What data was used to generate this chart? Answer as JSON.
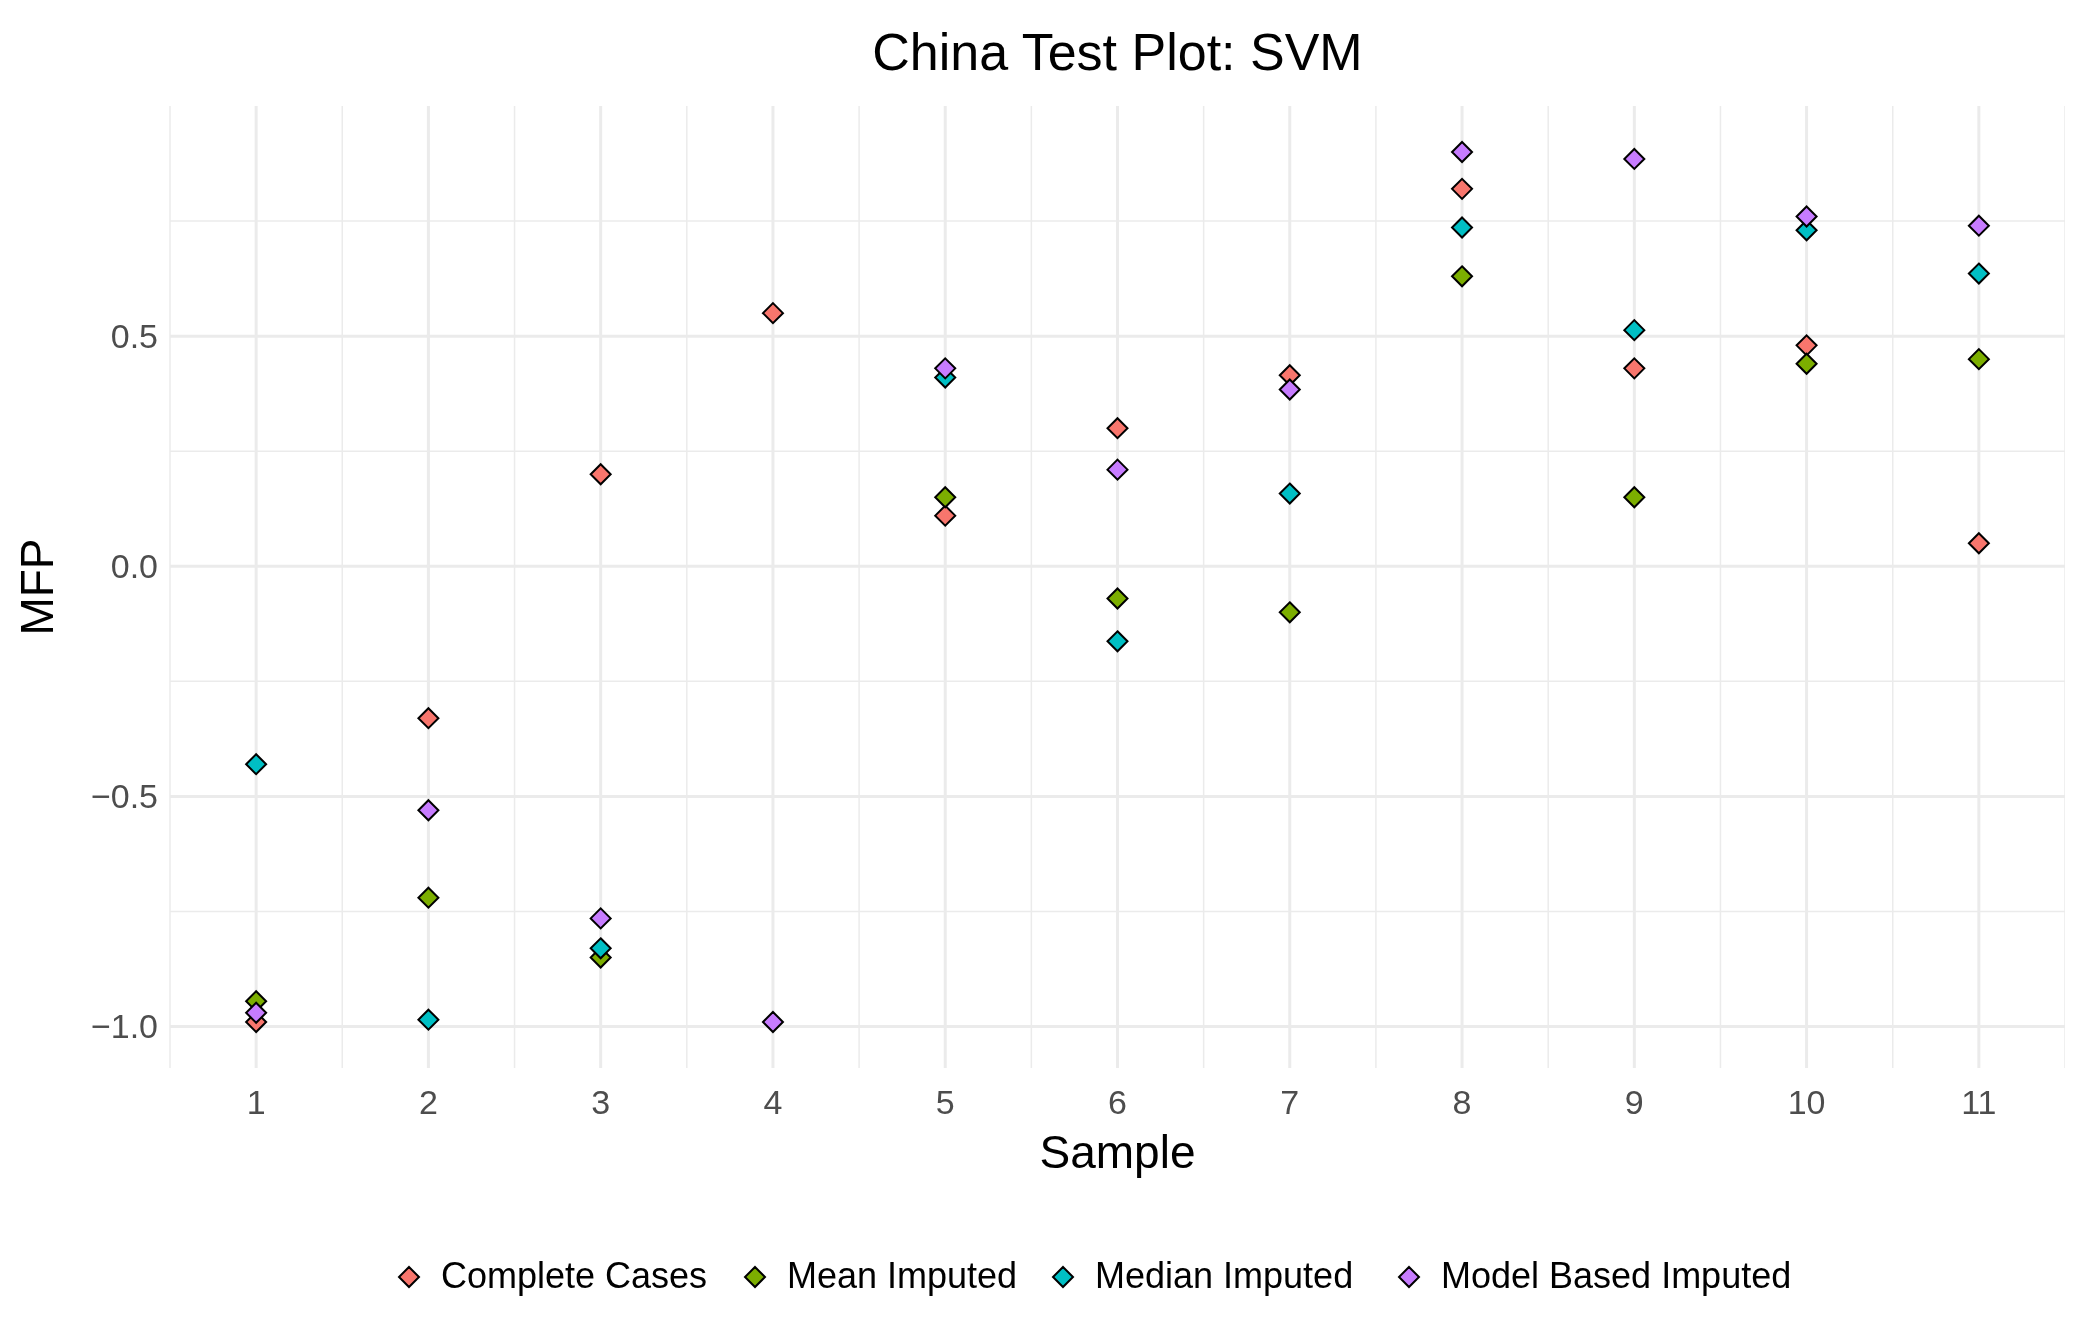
{
  "chart_data": {
    "type": "scatter",
    "title": "China Test Plot: SVM",
    "xlabel": "Sample",
    "ylabel": "MFP",
    "categories": [
      "1",
      "2",
      "3",
      "4",
      "5",
      "6",
      "7",
      "8",
      "9",
      "10",
      "11"
    ],
    "series": [
      {
        "name": "Complete Cases",
        "color": "#f8766d",
        "values": [
          -0.99,
          -0.33,
          0.2,
          0.55,
          0.11,
          0.3,
          0.415,
          0.82,
          0.43,
          0.48,
          0.05
        ]
      },
      {
        "name": "Mean Imputed",
        "color": "#7cae00",
        "values": [
          -0.945,
          -0.72,
          -0.85,
          null,
          0.15,
          -0.07,
          -0.1,
          0.63,
          0.15,
          0.44,
          0.45
        ]
      },
      {
        "name": "Median Imputed",
        "color": "#00bfc4",
        "values": [
          -0.43,
          -0.985,
          -0.83,
          null,
          0.41,
          -0.163,
          0.158,
          0.736,
          0.513,
          0.73,
          0.636
        ]
      },
      {
        "name": "Model Based Imputed",
        "color": "#c77cff",
        "values": [
          -0.97,
          -0.53,
          -0.765,
          -0.99,
          0.43,
          0.21,
          0.384,
          0.9,
          0.885,
          0.76,
          0.74
        ]
      }
    ],
    "ylim": [
      -1.09,
      1.0
    ],
    "yticks": [
      {
        "value": -0.75,
        "label": null
      },
      {
        "value": -0.25,
        "label": null
      },
      {
        "value": 0.25,
        "label": null
      },
      {
        "value": 0.75,
        "label": null
      },
      {
        "value": -1.0,
        "label": "−1.0"
      },
      {
        "value": -0.5,
        "label": "−0.5"
      },
      {
        "value": 0.0,
        "label": "0.0"
      },
      {
        "value": 0.5,
        "label": "0.5"
      }
    ],
    "grid": true,
    "legend": "bottom",
    "marker": "diamond"
  }
}
